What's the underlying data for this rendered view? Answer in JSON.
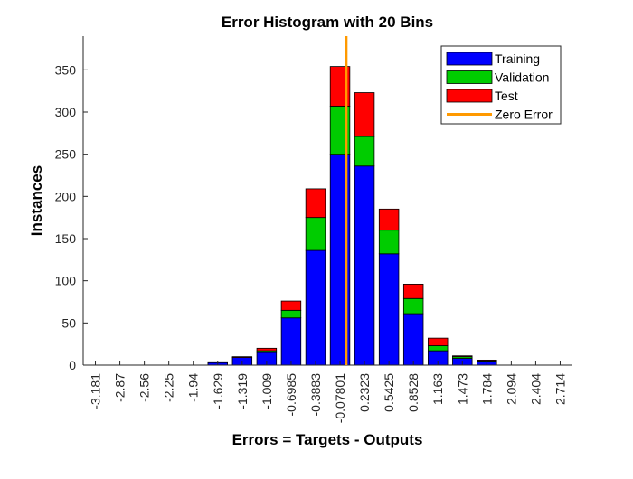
{
  "chart_data": {
    "type": "bar",
    "stacked": true,
    "title": "Error Histogram with 20 Bins",
    "xlabel": "Errors = Targets - Outputs",
    "ylabel": "Instances",
    "ylim": [
      0,
      390
    ],
    "yticks": [
      0,
      50,
      100,
      150,
      200,
      250,
      300,
      350
    ],
    "grid": false,
    "legend_position": "top-right",
    "categories": [
      "-3.181",
      "-2.87",
      "-2.56",
      "-2.25",
      "-1.94",
      "-1.629",
      "-1.319",
      "-1.009",
      "-0.6985",
      "-0.3883",
      "-0.07801",
      "0.2323",
      "0.5425",
      "0.8528",
      "1.163",
      "1.473",
      "1.784",
      "2.094",
      "2.404",
      "2.714"
    ],
    "series": [
      {
        "name": "Training",
        "color": "#0000ff",
        "values": [
          0,
          0,
          0,
          0,
          0,
          3,
          9,
          15,
          56,
          136,
          250,
          236,
          132,
          61,
          17,
          8,
          4,
          0,
          0,
          0
        ]
      },
      {
        "name": "Validation",
        "color": "#00cc00",
        "values": [
          0,
          0,
          0,
          0,
          0,
          0,
          0,
          2,
          9,
          39,
          57,
          35,
          28,
          18,
          6,
          2,
          1,
          0,
          0,
          0
        ]
      },
      {
        "name": "Test",
        "color": "#ff0000",
        "values": [
          0,
          0,
          0,
          0,
          0,
          1,
          1,
          3,
          11,
          34,
          47,
          52,
          25,
          17,
          9,
          1,
          1,
          0,
          0,
          0
        ]
      }
    ],
    "zero_error": {
      "name": "Zero Error",
      "color": "#ff9900",
      "x": 0
    }
  }
}
